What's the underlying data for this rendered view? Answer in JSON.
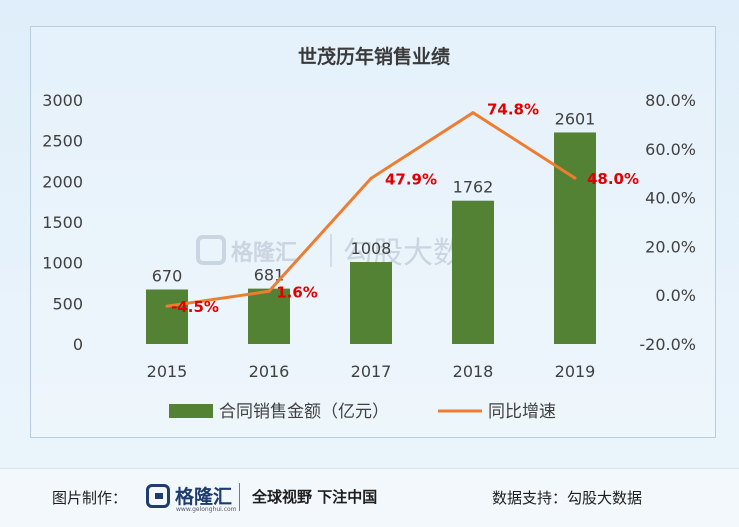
{
  "chart_data": {
    "type": "bar+line",
    "title": "世茂历年销售业绩",
    "categories": [
      "2015",
      "2016",
      "2017",
      "2018",
      "2019"
    ],
    "series": [
      {
        "name": "合同销售金额（亿元）",
        "type": "bar",
        "axis": "left",
        "color": "#548235",
        "values": [
          670,
          681,
          1008,
          1762,
          2601
        ],
        "labels": [
          "670",
          "681",
          "1008",
          "1762",
          "2601"
        ]
      },
      {
        "name": "同比增速",
        "type": "line",
        "axis": "right",
        "color": "#ed7d31",
        "values": [
          -4.5,
          1.6,
          47.9,
          74.8,
          48.0
        ],
        "labels": [
          "-4.5%",
          "1.6%",
          "47.9%",
          "74.8%",
          "48.0%"
        ]
      }
    ],
    "y_left": {
      "ylim": [
        0,
        3000
      ],
      "ticks": [
        "3000",
        "2500",
        "2000",
        "1500",
        "1000",
        "500",
        "0"
      ]
    },
    "y_right": {
      "ylim": [
        -20,
        80
      ],
      "ticks": [
        "80.0%",
        "60.0%",
        "40.0%",
        "20.0%",
        "0.0%",
        "-20.0%"
      ]
    },
    "legend_position": "bottom",
    "line_label_color": "#e00000"
  },
  "watermark": {
    "brand": "格隆汇",
    "text": "勾股大数据"
  },
  "footer": {
    "credit": "图片制作：",
    "logo_name": "格隆汇",
    "logo_url": "www.gelonghui.com",
    "slogan": "全球视野 下注中国",
    "support": "数据支持：勾股大数据"
  }
}
